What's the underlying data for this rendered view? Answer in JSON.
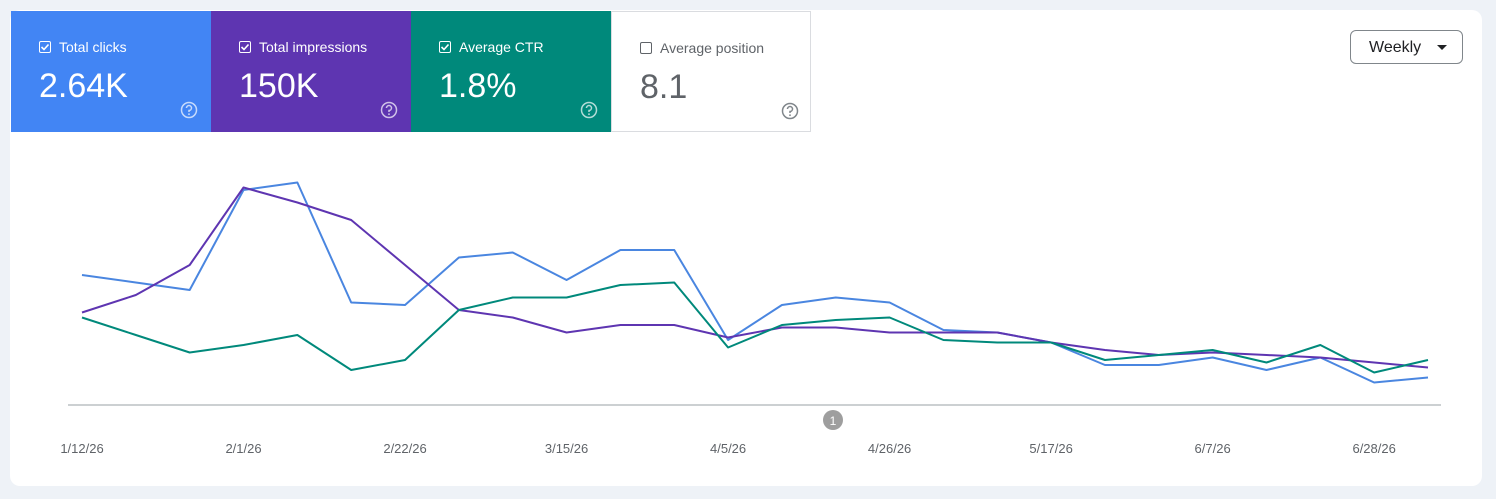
{
  "metrics": [
    {
      "label": "Total clicks",
      "value": "2.64K",
      "checked": true,
      "color": "#4285f4"
    },
    {
      "label": "Total impressions",
      "value": "150K",
      "checked": true,
      "color": "#5e35b1"
    },
    {
      "label": "Average CTR",
      "value": "1.8%",
      "checked": true,
      "color": "#00897b"
    },
    {
      "label": "Average position",
      "value": "8.1",
      "checked": false,
      "color": "#ffffff"
    }
  ],
  "period": "Weekly",
  "annotation": "1",
  "chart_data": {
    "type": "line",
    "categories": [
      "1/12/26",
      null,
      null,
      "2/1/26",
      null,
      null,
      "2/22/26",
      null,
      null,
      "3/15/26",
      null,
      null,
      "4/5/26",
      null,
      null,
      "4/26/26",
      null,
      null,
      "5/17/26",
      null,
      null,
      "6/7/26",
      null,
      null,
      "6/28/26",
      null
    ],
    "ylim": [
      0,
      100
    ],
    "series": [
      {
        "name": "Total clicks",
        "color": "#4a86e0",
        "values": [
          52,
          49,
          46,
          86,
          89,
          41,
          40,
          59,
          61,
          50,
          62,
          62,
          26,
          40,
          43,
          41,
          30,
          29,
          25,
          16,
          16,
          19,
          14,
          19,
          9,
          11
        ]
      },
      {
        "name": "Total impressions",
        "color": "#5e35b1",
        "values": [
          37,
          44,
          56,
          87,
          81,
          74,
          56,
          38,
          35,
          29,
          32,
          32,
          27,
          31,
          31,
          29,
          29,
          29,
          25,
          22,
          20,
          21,
          20,
          19,
          17,
          15
        ]
      },
      {
        "name": "Average CTR",
        "color": "#00897b",
        "values": [
          35,
          28,
          21,
          24,
          28,
          14,
          18,
          38,
          43,
          43,
          48,
          49,
          23,
          32,
          34,
          35,
          26,
          25,
          25,
          18,
          20,
          22,
          17,
          24,
          13,
          18
        ]
      }
    ]
  }
}
